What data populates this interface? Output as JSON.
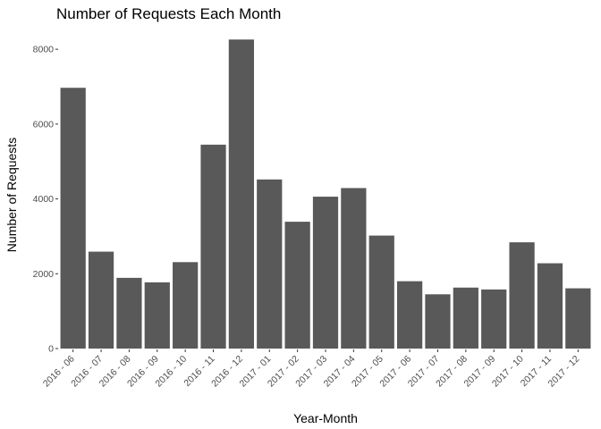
{
  "chart_data": {
    "type": "bar",
    "title": "Number of Requests Each Month",
    "xlabel": "Year-Month",
    "ylabel": "Number of Requests",
    "categories": [
      "2016 - 06",
      "2016 - 07",
      "2016 - 08",
      "2016 - 09",
      "2016 - 10",
      "2016 - 11",
      "2016 - 12",
      "2017 - 01",
      "2017 - 02",
      "2017 - 03",
      "2017 - 04",
      "2017 - 05",
      "2017 - 06",
      "2017 - 07",
      "2017 - 08",
      "2017 - 09",
      "2017 - 10",
      "2017 - 11",
      "2017 - 12"
    ],
    "values": [
      6970,
      2590,
      1890,
      1770,
      2310,
      5450,
      8260,
      4520,
      3390,
      4060,
      4290,
      3020,
      1800,
      1450,
      1630,
      1580,
      2840,
      2280,
      1610
    ],
    "ylim": [
      0,
      8600
    ],
    "yticks": [
      0,
      2000,
      4000,
      6000,
      8000
    ],
    "bar_color": "#595959",
    "grid": false,
    "legend": "none"
  }
}
